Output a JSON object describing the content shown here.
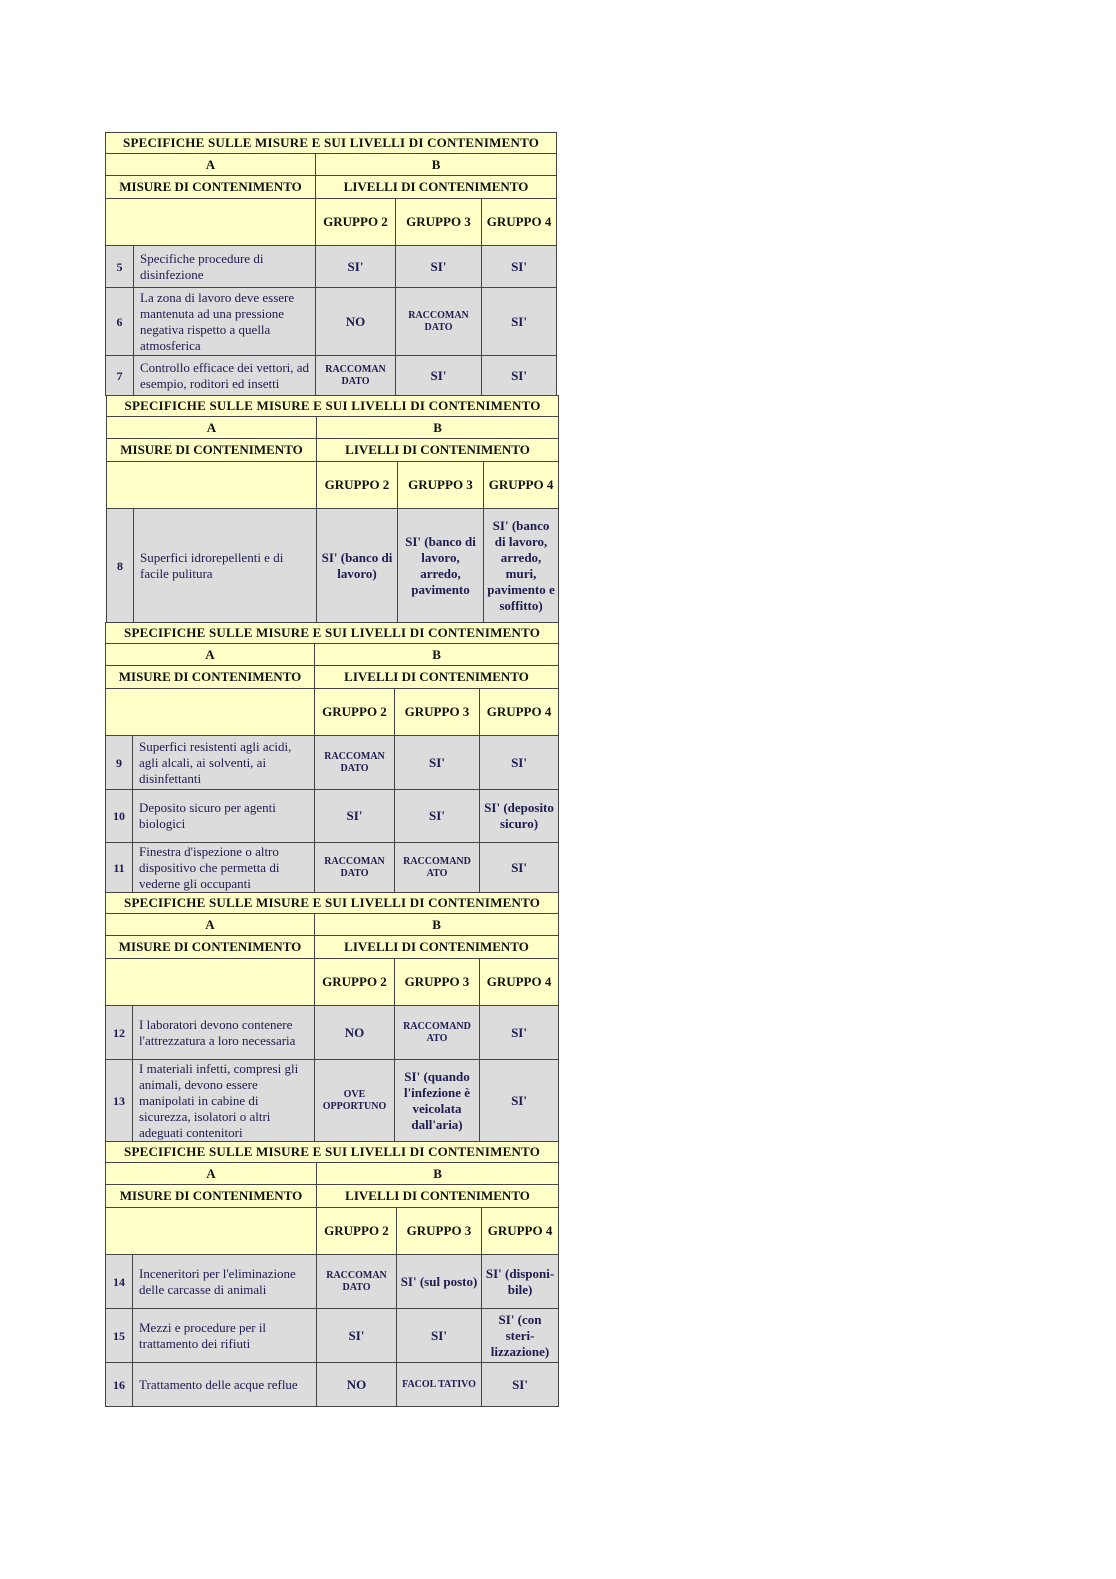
{
  "header": {
    "title": "SPECIFICHE SULLE MISURE E SUI LIVELLI DI CONTENIMENTO",
    "col_a": "A",
    "col_b": "B",
    "measures": "MISURE DI CONTENIMENTO",
    "levels": "LIVELLI DI CONTENIMENTO",
    "groups": [
      "GRUPPO 2",
      "GRUPPO 3",
      "GRUPPO 4"
    ]
  },
  "tables": [
    {
      "rows": [
        {
          "num": "5",
          "desc": "Specifiche procedure di disinfezione",
          "values": [
            "SI'",
            "SI'",
            "SI'"
          ]
        },
        {
          "num": "6",
          "desc": "La zona di lavoro deve essere mantenuta ad una pressione negativa rispetto a quella atmosferica",
          "values": [
            "NO",
            "RACCOMAN DATO",
            "SI'"
          ]
        },
        {
          "num": "7",
          "desc": "Controllo efficace dei vettori, ad esempio, roditori ed insetti",
          "values": [
            "RACCOMAN DATO",
            "SI'",
            "SI'"
          ]
        }
      ]
    },
    {
      "rows": [
        {
          "num": "8",
          "desc": "Superfici idrorepellenti e di facile pulitura",
          "values": [
            "SI' (banco di lavoro)",
            "SI' (banco di lavoro, arredo, pavimento",
            "SI' (banco di lavoro, arredo, muri, pavimento e soffitto)"
          ]
        }
      ]
    },
    {
      "rows": [
        {
          "num": "9",
          "desc": "Superfici resistenti agli acidi, agli alcali, ai solventi, ai disinfettanti",
          "values": [
            "RACCOMAN DATO",
            "SI'",
            "SI'"
          ]
        },
        {
          "num": "10",
          "desc": "Deposito sicuro per agenti biologici",
          "values": [
            "SI'",
            "SI'",
            "SI' (deposito sicuro)"
          ]
        },
        {
          "num": "11",
          "desc": "Finestra d'ispezione o altro dispositivo che permetta di vederne gli occupanti",
          "values": [
            "RACCOMAN DATO",
            "RACCOMAND ATO",
            "SI'"
          ]
        }
      ]
    },
    {
      "rows": [
        {
          "num": "12",
          "desc": "I laboratori devono contenere l'attrezzatura a loro necessaria",
          "values": [
            "NO",
            "RACCOMAND ATO",
            "SI'"
          ]
        },
        {
          "num": "13",
          "desc": "I materiali infetti, compresi gli animali, devono essere manipolati in cabine di sicurezza, isolatori o altri adeguati contenitori",
          "values": [
            "OVE OPPORTUNO",
            "SI' (quando l'infezione è veicolata dall'aria)",
            "SI'"
          ]
        }
      ]
    },
    {
      "rows": [
        {
          "num": "14",
          "desc": "Inceneritori per l'eliminazione delle carcasse di animali",
          "values": [
            "RACCOMAN DATO",
            "SI' (sul posto)",
            "SI' (disponi-bile)"
          ]
        },
        {
          "num": "15",
          "desc": "Mezzi e procedure per il trattamento dei rifiuti",
          "values": [
            "SI'",
            "SI'",
            "SI' (con steri-lizzazione)"
          ]
        },
        {
          "num": "16",
          "desc": "Trattamento delle acque reflue",
          "values": [
            "NO",
            "FACOL TATIVO",
            "SI'"
          ]
        }
      ]
    }
  ]
}
